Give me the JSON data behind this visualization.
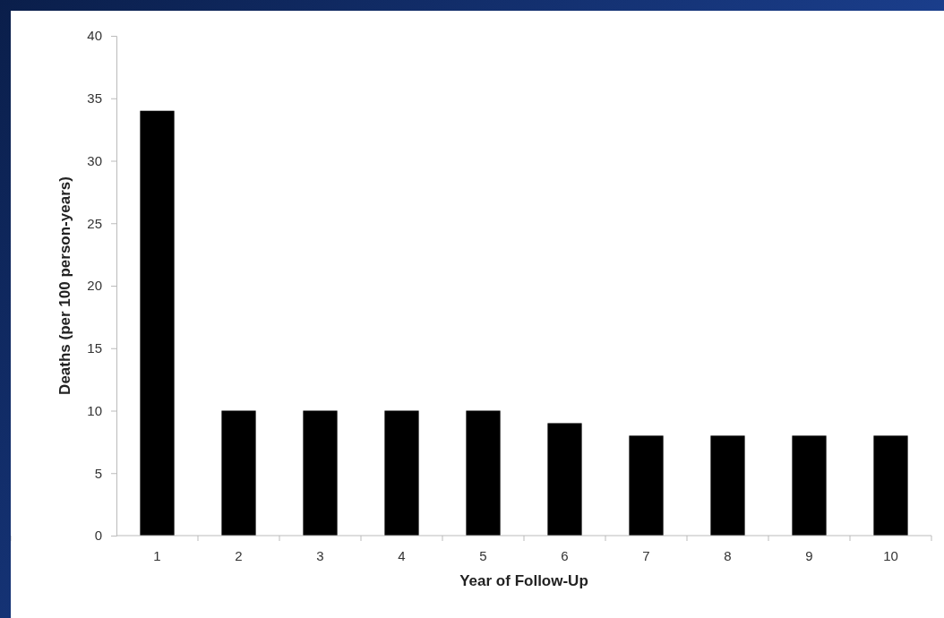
{
  "chart_data": {
    "type": "bar",
    "xlabel": "Year of Follow-Up",
    "ylabel": "Deaths (per 100 person-years)",
    "categories": [
      "1",
      "2",
      "3",
      "4",
      "5",
      "6",
      "7",
      "8",
      "9",
      "10"
    ],
    "values": [
      34,
      10,
      10,
      10,
      10,
      9,
      8,
      8,
      8,
      8
    ],
    "color": "#000000",
    "ylim": [
      0,
      40
    ],
    "yticks": [
      0,
      5,
      10,
      15,
      20,
      25,
      30,
      35,
      40
    ],
    "grid": false
  }
}
